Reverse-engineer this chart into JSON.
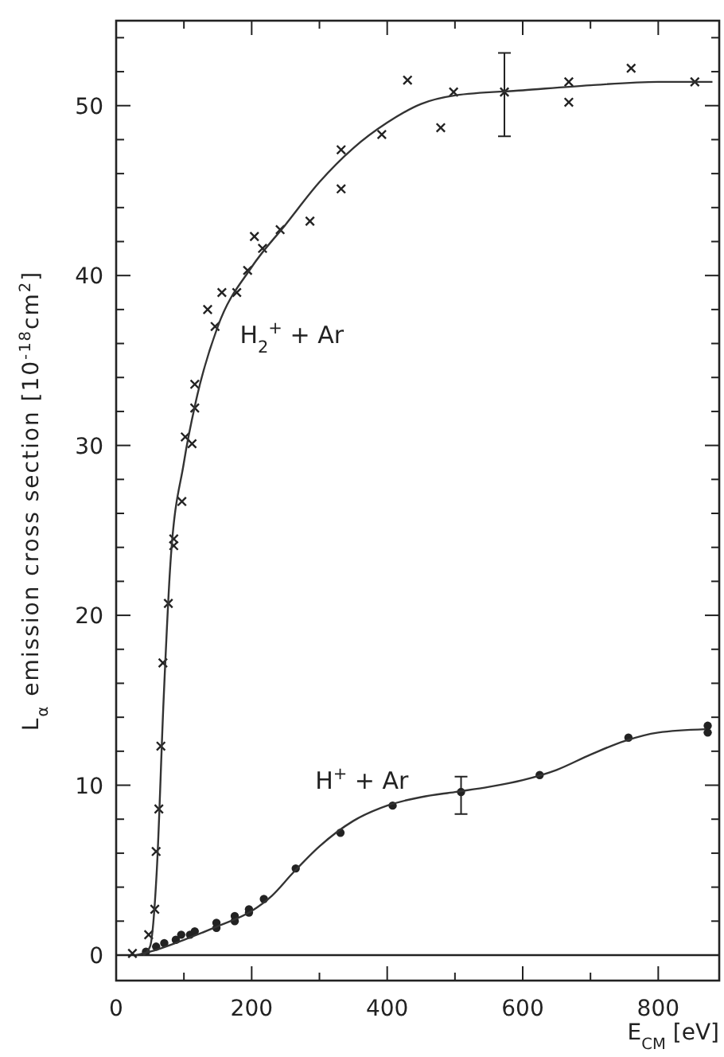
{
  "chart_data": {
    "type": "scatter",
    "xlabel": "E$_{CM}$ [eV]",
    "ylabel": "L$_{α}$ emission cross section [10$^{-18}$cm$^{2}$]",
    "xlim": [
      0,
      890
    ],
    "ylim": [
      -1.5,
      55
    ],
    "xticks": [
      0,
      {
        "value": 100,
        "label": null
      },
      200,
      {
        "value": 300,
        "label": null
      },
      400,
      {
        "value": 500,
        "label": null
      },
      600,
      {
        "value": 700,
        "label": null
      },
      800
    ],
    "yticks": [
      0,
      {
        "value": 2,
        "label": null
      },
      {
        "value": 4,
        "label": null
      },
      {
        "value": 6,
        "label": null
      },
      {
        "value": 8,
        "label": null
      },
      10,
      {
        "value": 12,
        "label": null
      },
      {
        "value": 14,
        "label": null
      },
      {
        "value": 16,
        "label": null
      },
      {
        "value": 18,
        "label": null
      },
      20,
      {
        "value": 22,
        "label": null
      },
      {
        "value": 24,
        "label": null
      },
      {
        "value": 26,
        "label": null
      },
      {
        "value": 28,
        "label": null
      },
      30,
      {
        "value": 32,
        "label": null
      },
      {
        "value": 34,
        "label": null
      },
      {
        "value": 36,
        "label": null
      },
      {
        "value": 38,
        "label": null
      },
      40,
      {
        "value": 42,
        "label": null
      },
      {
        "value": 44,
        "label": null
      },
      {
        "value": 46,
        "label": null
      },
      {
        "value": 48,
        "label": null
      },
      50,
      {
        "value": 52,
        "label": null
      },
      {
        "value": 54,
        "label": null
      }
    ],
    "grid": false,
    "ref_lines": [
      {
        "axis": "y",
        "value": 0,
        "color": "#222222"
      }
    ],
    "series": [
      {
        "name": "H$_{2}$$^{+}$ + Ar",
        "marker": "cross",
        "color": "#222222",
        "x": [
          24,
          48,
          57,
          59,
          63,
          66,
          69,
          77,
          85,
          85,
          97,
          102,
          112,
          116,
          116,
          135,
          146,
          156,
          178,
          194,
          204,
          216,
          242,
          286,
          332,
          332,
          392,
          430,
          479,
          498,
          573,
          668,
          668,
          760,
          854
        ],
        "values": [
          0.1,
          1.2,
          2.7,
          6.1,
          8.6,
          12.3,
          17.2,
          20.7,
          24.1,
          24.5,
          26.7,
          30.5,
          30.1,
          32.2,
          33.6,
          38.0,
          37.0,
          39.0,
          39.0,
          40.3,
          42.3,
          41.6,
          42.7,
          43.2,
          45.1,
          47.4,
          48.3,
          51.5,
          48.7,
          50.8,
          50.8,
          51.4,
          50.2,
          52.2,
          51.4
        ],
        "errors": [
          null,
          null,
          null,
          null,
          null,
          null,
          null,
          null,
          null,
          null,
          null,
          null,
          null,
          null,
          null,
          null,
          null,
          null,
          null,
          null,
          null,
          null,
          null,
          null,
          null,
          null,
          null,
          null,
          null,
          null,
          [
            48.2,
            53.1
          ],
          null,
          null,
          null,
          null
        ]
      },
      {
        "name": "H$^{+}$ + Ar",
        "marker": "circle",
        "color": "#222222",
        "x": [
          44,
          59,
          71,
          88,
          96,
          109,
          116,
          148,
          148,
          175,
          175,
          196,
          196,
          218,
          265,
          331,
          408,
          509,
          625,
          756,
          873,
          873
        ],
        "values": [
          0.2,
          0.5,
          0.7,
          0.9,
          1.2,
          1.2,
          1.4,
          1.6,
          1.9,
          2.0,
          2.3,
          2.5,
          2.7,
          3.3,
          5.1,
          7.2,
          8.8,
          9.6,
          10.6,
          12.8,
          13.1,
          13.5
        ],
        "errors": [
          null,
          null,
          null,
          null,
          null,
          null,
          null,
          null,
          null,
          null,
          null,
          null,
          null,
          null,
          null,
          null,
          null,
          [
            8.3,
            10.5
          ],
          null,
          null,
          null,
          null
        ]
      },
      {
        "type": "line",
        "line_style": "solid",
        "color": "#333333",
        "x": [
          40,
          50,
          60,
          70,
          80,
          100,
          120,
          150,
          200,
          250,
          300,
          350,
          400,
          450,
          500,
          600,
          700,
          800,
          880
        ],
        "values": [
          0,
          0.5,
          5,
          15,
          23,
          29,
          33,
          37,
          40.5,
          43,
          45.5,
          47.5,
          49,
          50.1,
          50.6,
          50.9,
          51.2,
          51.4,
          51.4
        ]
      },
      {
        "type": "line",
        "line_style": "solid",
        "color": "#333333",
        "x": [
          30,
          50,
          100,
          150,
          200,
          230,
          260,
          300,
          350,
          400,
          450,
          500,
          550,
          600,
          650,
          700,
          750,
          800,
          870
        ],
        "values": [
          0,
          0.2,
          0.9,
          1.7,
          2.6,
          3.5,
          4.8,
          6.4,
          7.9,
          8.8,
          9.3,
          9.6,
          9.9,
          10.3,
          10.9,
          11.8,
          12.6,
          13.1,
          13.3
        ]
      }
    ]
  }
}
